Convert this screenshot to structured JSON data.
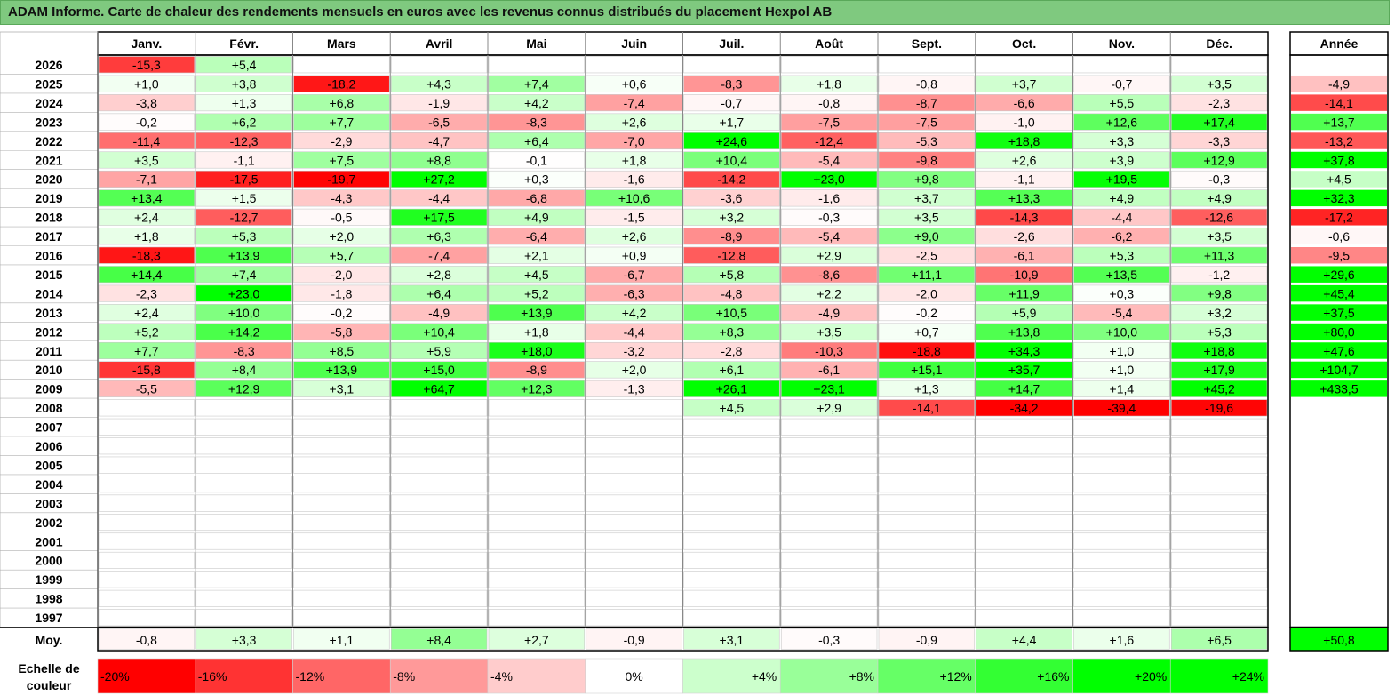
{
  "title": "ADAM Informe. Carte de chaleur des rendements mensuels en euros avec les revenus connus distribués du placement Hexpol AB",
  "chart_data": {
    "type": "heatmap",
    "months": [
      "Janv.",
      "Févr.",
      "Mars",
      "Avril",
      "Mai",
      "Juin",
      "Juil.",
      "Août",
      "Sept.",
      "Oct.",
      "Nov.",
      "Déc."
    ],
    "year_header": "Année",
    "avg_label": "Moy.",
    "scale_label_line1": "Echelle de",
    "scale_label_line2": "couleur",
    "rows": [
      {
        "year": "2026",
        "values": [
          "-15,3",
          "+5,4",
          "",
          "",
          "",
          "",
          "",
          "",
          "",
          "",
          "",
          ""
        ],
        "annual": ""
      },
      {
        "year": "2025",
        "values": [
          "+1,0",
          "+3,8",
          "-18,2",
          "+4,3",
          "+7,4",
          "+0,6",
          "-8,3",
          "+1,8",
          "-0,8",
          "+3,7",
          "-0,7",
          "+3,5"
        ],
        "annual": "-4,9"
      },
      {
        "year": "2024",
        "values": [
          "-3,8",
          "+1,3",
          "+6,8",
          "-1,9",
          "+4,2",
          "-7,4",
          "-0,7",
          "-0,8",
          "-8,7",
          "-6,6",
          "+5,5",
          "-2,3"
        ],
        "annual": "-14,1"
      },
      {
        "year": "2023",
        "values": [
          "-0,2",
          "+6,2",
          "+7,7",
          "-6,5",
          "-8,3",
          "+2,6",
          "+1,7",
          "-7,5",
          "-7,5",
          "-1,0",
          "+12,6",
          "+17,4"
        ],
        "annual": "+13,7"
      },
      {
        "year": "2022",
        "values": [
          "-11,4",
          "-12,3",
          "-2,9",
          "-4,7",
          "+6,4",
          "-7,0",
          "+24,6",
          "-12,4",
          "-5,3",
          "+18,8",
          "+3,3",
          "-3,3"
        ],
        "annual": "-13,2"
      },
      {
        "year": "2021",
        "values": [
          "+3,5",
          "-1,1",
          "+7,5",
          "+8,8",
          "-0,1",
          "+1,8",
          "+10,4",
          "-5,4",
          "-9,8",
          "+2,6",
          "+3,9",
          "+12,9"
        ],
        "annual": "+37,8"
      },
      {
        "year": "2020",
        "values": [
          "-7,1",
          "-17,5",
          "-19,7",
          "+27,2",
          "+0,3",
          "-1,6",
          "-14,2",
          "+23,0",
          "+9,8",
          "-1,1",
          "+19,5",
          "-0,3"
        ],
        "annual": "+4,5"
      },
      {
        "year": "2019",
        "values": [
          "+13,4",
          "+1,5",
          "-4,3",
          "-4,4",
          "-6,8",
          "+10,6",
          "-3,6",
          "-1,6",
          "+3,7",
          "+13,3",
          "+4,9",
          "+4,9"
        ],
        "annual": "+32,3"
      },
      {
        "year": "2018",
        "values": [
          "+2,4",
          "-12,7",
          "-0,5",
          "+17,5",
          "+4,9",
          "-1,5",
          "+3,2",
          "-0,3",
          "+3,5",
          "-14,3",
          "-4,4",
          "-12,6"
        ],
        "annual": "-17,2"
      },
      {
        "year": "2017",
        "values": [
          "+1,8",
          "+5,3",
          "+2,0",
          "+6,3",
          "-6,4",
          "+2,6",
          "-8,9",
          "-5,4",
          "+9,0",
          "-2,6",
          "-6,2",
          "+3,5"
        ],
        "annual": "-0,6"
      },
      {
        "year": "2016",
        "values": [
          "-18,3",
          "+13,9",
          "+5,7",
          "-7,4",
          "+2,1",
          "+0,9",
          "-12,8",
          "+2,9",
          "-2,5",
          "-6,1",
          "+5,3",
          "+11,3"
        ],
        "annual": "-9,5"
      },
      {
        "year": "2015",
        "values": [
          "+14,4",
          "+7,4",
          "-2,0",
          "+2,8",
          "+4,5",
          "-6,7",
          "+5,8",
          "-8,6",
          "+11,1",
          "-10,9",
          "+13,5",
          "-1,2"
        ],
        "annual": "+29,6"
      },
      {
        "year": "2014",
        "values": [
          "-2,3",
          "+23,0",
          "-1,8",
          "+6,4",
          "+5,2",
          "-6,3",
          "-4,8",
          "+2,2",
          "-2,0",
          "+11,9",
          "+0,3",
          "+9,8"
        ],
        "annual": "+45,4"
      },
      {
        "year": "2013",
        "values": [
          "+2,4",
          "+10,0",
          "-0,2",
          "-4,9",
          "+13,9",
          "+4,2",
          "+10,5",
          "-4,9",
          "-0,2",
          "+5,9",
          "-5,4",
          "+3,2"
        ],
        "annual": "+37,5"
      },
      {
        "year": "2012",
        "values": [
          "+5,2",
          "+14,2",
          "-5,8",
          "+10,4",
          "+1,8",
          "-4,4",
          "+8,3",
          "+3,5",
          "+0,7",
          "+13,8",
          "+10,0",
          "+5,3"
        ],
        "annual": "+80,0"
      },
      {
        "year": "2011",
        "values": [
          "+7,7",
          "-8,3",
          "+8,5",
          "+5,9",
          "+18,0",
          "-3,2",
          "-2,8",
          "-10,3",
          "-18,8",
          "+34,3",
          "+1,0",
          "+18,8"
        ],
        "annual": "+47,6"
      },
      {
        "year": "2010",
        "values": [
          "-15,8",
          "+8,4",
          "+13,9",
          "+15,0",
          "-8,9",
          "+2,0",
          "+6,1",
          "-6,1",
          "+15,1",
          "+35,7",
          "+1,0",
          "+17,9"
        ],
        "annual": "+104,7"
      },
      {
        "year": "2009",
        "values": [
          "-5,5",
          "+12,9",
          "+3,1",
          "+64,7",
          "+12,3",
          "-1,3",
          "+26,1",
          "+23,1",
          "+1,3",
          "+14,7",
          "+1,4",
          "+45,2"
        ],
        "annual": "+433,5"
      },
      {
        "year": "2008",
        "values": [
          "",
          "",
          "",
          "",
          "",
          "",
          "+4,5",
          "+2,9",
          "-14,1",
          "-34,2",
          "-39,4",
          "-19,6"
        ],
        "annual": ""
      },
      {
        "year": "2007",
        "values": [
          "",
          "",
          "",
          "",
          "",
          "",
          "",
          "",
          "",
          "",
          "",
          ""
        ],
        "annual": ""
      },
      {
        "year": "2006",
        "values": [
          "",
          "",
          "",
          "",
          "",
          "",
          "",
          "",
          "",
          "",
          "",
          ""
        ],
        "annual": ""
      },
      {
        "year": "2005",
        "values": [
          "",
          "",
          "",
          "",
          "",
          "",
          "",
          "",
          "",
          "",
          "",
          ""
        ],
        "annual": ""
      },
      {
        "year": "2004",
        "values": [
          "",
          "",
          "",
          "",
          "",
          "",
          "",
          "",
          "",
          "",
          "",
          ""
        ],
        "annual": ""
      },
      {
        "year": "2003",
        "values": [
          "",
          "",
          "",
          "",
          "",
          "",
          "",
          "",
          "",
          "",
          "",
          ""
        ],
        "annual": ""
      },
      {
        "year": "2002",
        "values": [
          "",
          "",
          "",
          "",
          "",
          "",
          "",
          "",
          "",
          "",
          "",
          ""
        ],
        "annual": ""
      },
      {
        "year": "2001",
        "values": [
          "",
          "",
          "",
          "",
          "",
          "",
          "",
          "",
          "",
          "",
          "",
          ""
        ],
        "annual": ""
      },
      {
        "year": "2000",
        "values": [
          "",
          "",
          "",
          "",
          "",
          "",
          "",
          "",
          "",
          "",
          "",
          ""
        ],
        "annual": ""
      },
      {
        "year": "1999",
        "values": [
          "",
          "",
          "",
          "",
          "",
          "",
          "",
          "",
          "",
          "",
          "",
          ""
        ],
        "annual": ""
      },
      {
        "year": "1998",
        "values": [
          "",
          "",
          "",
          "",
          "",
          "",
          "",
          "",
          "",
          "",
          "",
          ""
        ],
        "annual": ""
      },
      {
        "year": "1997",
        "values": [
          "",
          "",
          "",
          "",
          "",
          "",
          "",
          "",
          "",
          "",
          "",
          ""
        ],
        "annual": ""
      }
    ],
    "averages": [
      "-0,8",
      "+3,3",
      "+1,1",
      "+8,4",
      "+2,7",
      "-0,9",
      "+3,1",
      "-0,3",
      "-0,9",
      "+4,4",
      "+1,6",
      "+6,5"
    ],
    "average_annual": "+50,8",
    "scale": [
      {
        "label": "-20%",
        "value": -20
      },
      {
        "label": "-16%",
        "value": -16
      },
      {
        "label": "-12%",
        "value": -12
      },
      {
        "label": "-8%",
        "value": -8
      },
      {
        "label": "-4%",
        "value": -4
      },
      {
        "label": "0%",
        "value": 0
      },
      {
        "label": "+4%",
        "value": 4
      },
      {
        "label": "+8%",
        "value": 8
      },
      {
        "label": "+12%",
        "value": 12
      },
      {
        "label": "+16%",
        "value": 16
      },
      {
        "label": "+20%",
        "value": 20
      },
      {
        "label": "+24%",
        "value": 24
      }
    ],
    "colors": {
      "negative_max": "#ff0000",
      "neutral": "#ffffff",
      "positive_max": "#00ff00",
      "title_bg": "#7fc97f"
    }
  }
}
